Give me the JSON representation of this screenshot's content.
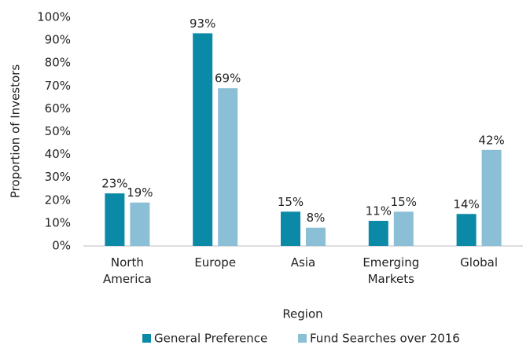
{
  "chart_data": {
    "type": "bar",
    "x_label": "Region",
    "y_label": "Proportion of Investors",
    "categories": [
      "North America",
      "Europe",
      "Asia",
      "Emerging Markets",
      "Global"
    ],
    "series": [
      {
        "name": "General Preference",
        "color": "#0b8aa8",
        "values": [
          23,
          93,
          15,
          11,
          14
        ],
        "value_labels": [
          "23%",
          "93%",
          "15%",
          "11%",
          "14%"
        ]
      },
      {
        "name": "Fund Searches over 2016",
        "color": "#8bbfd6",
        "values": [
          19,
          69,
          8,
          15,
          42
        ],
        "value_labels": [
          "19%",
          "69%",
          "8%",
          "15%",
          "42%"
        ]
      }
    ],
    "ylim": [
      0,
      100
    ],
    "yticks": [
      {
        "value": 0,
        "label": "0%"
      },
      {
        "value": 10,
        "label": "10%"
      },
      {
        "value": 20,
        "label": "20%"
      },
      {
        "value": 30,
        "label": "30%"
      },
      {
        "value": 40,
        "label": "40%"
      },
      {
        "value": 50,
        "label": "50%"
      },
      {
        "value": 60,
        "label": "60%"
      },
      {
        "value": 70,
        "label": "70%"
      },
      {
        "value": 80,
        "label": "80%"
      },
      {
        "value": 90,
        "label": "90%"
      },
      {
        "value": 100,
        "label": "100%"
      }
    ],
    "grid": false,
    "legend": "bottom"
  }
}
